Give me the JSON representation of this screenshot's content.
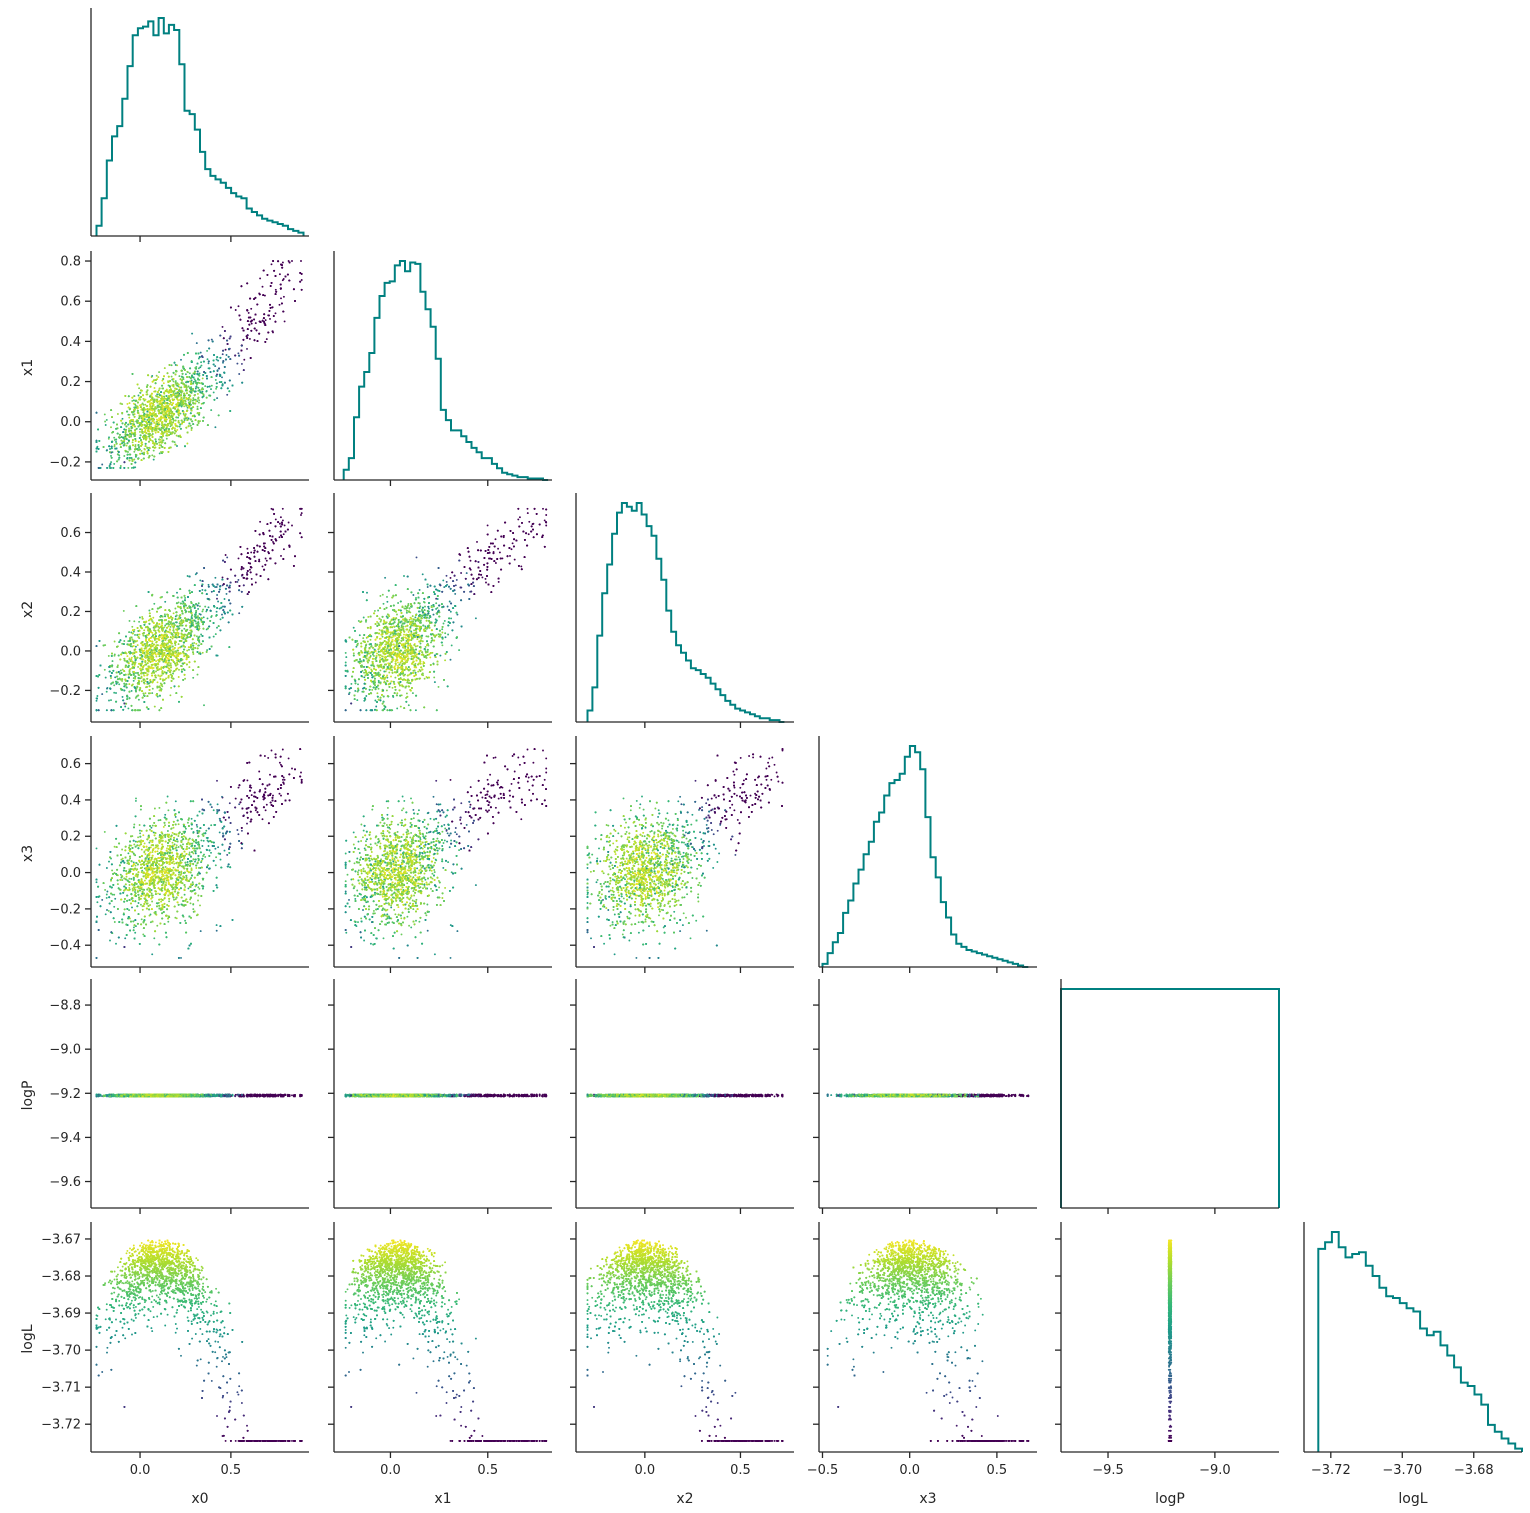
{
  "chart_data": {
    "type": "scatter",
    "variables": [
      "x0",
      "x1",
      "x2",
      "x3",
      "logP",
      "logL"
    ],
    "ranges": {
      "x0": [
        -0.27,
        0.93
      ],
      "x1": [
        -0.29,
        0.83
      ],
      "x2": [
        -0.36,
        0.78
      ],
      "x3": [
        -0.52,
        0.73
      ],
      "logP": [
        -9.72,
        -8.7
      ],
      "logL": [
        -3.7275,
        -3.6665
      ]
    },
    "ticks": {
      "x0": {
        "values": [
          0.0,
          0.5
        ],
        "labels": [
          "0.0",
          "0.5"
        ]
      },
      "x1": {
        "values": [
          -0.2,
          0.0,
          0.2,
          0.4,
          0.6,
          0.8
        ],
        "labels": [
          "−0.2",
          "0.0",
          "0.2",
          "0.4",
          "0.6",
          "0.8"
        ]
      },
      "x2": {
        "values": [
          -0.2,
          0.0,
          0.2,
          0.4,
          0.6
        ],
        "labels": [
          "−0.2",
          "0.0",
          "0.2",
          "0.4",
          "0.6"
        ]
      },
      "x3": {
        "values": [
          -0.4,
          -0.2,
          0.0,
          0.2,
          0.4,
          0.6
        ],
        "labels": [
          "−0.4",
          "−0.2",
          "0.0",
          "0.2",
          "0.4",
          "0.6"
        ]
      },
      "x3_bottom": {
        "values": [
          -0.5,
          0.0,
          0.5
        ],
        "labels": [
          "−0.5",
          "0.0",
          "0.5"
        ]
      },
      "x1_bottom": {
        "values": [
          0.0,
          0.5
        ],
        "labels": [
          "0.0",
          "0.5"
        ]
      },
      "x2_bottom": {
        "values": [
          0.0,
          0.5
        ],
        "labels": [
          "0.0",
          "0.5"
        ]
      },
      "logP": {
        "values": [
          -9.6,
          -9.4,
          -9.2,
          -9.0,
          -8.8
        ],
        "labels": [
          "−9.6",
          "−9.4",
          "−9.2",
          "−9.0",
          "−8.8"
        ]
      },
      "logP_bottom": {
        "values": [
          -9.5,
          -9.0
        ],
        "labels": [
          "−9.5",
          "−9.0"
        ]
      },
      "logL": {
        "values": [
          -3.72,
          -3.71,
          -3.7,
          -3.69,
          -3.68,
          -3.67
        ],
        "labels": [
          "−3.72",
          "−3.71",
          "−3.70",
          "−3.69",
          "−3.68",
          "−3.67"
        ]
      },
      "logL_bottom": {
        "values": [
          -3.72,
          -3.7,
          -3.68
        ],
        "labels": [
          "−3.72",
          "−3.70",
          "−3.68"
        ]
      }
    },
    "histograms": {
      "x0": {
        "range": [
          -0.24,
          0.9
        ],
        "counts": [
          6,
          22,
          44,
          58,
          64,
          80,
          99,
          117,
          121,
          122,
          125,
          117,
          127,
          118,
          123,
          120,
          100,
          73,
          71,
          62,
          49,
          39,
          35,
          33,
          31,
          28,
          25,
          23,
          22,
          16,
          14,
          12,
          10,
          9,
          8,
          7,
          6,
          4,
          3,
          2
        ]
      },
      "x1": {
        "range": [
          -0.24,
          0.81
        ],
        "counts": [
          7,
          15,
          43,
          64,
          74,
          87,
          111,
          126,
          135,
          136,
          147,
          150,
          143,
          149,
          148,
          129,
          117,
          105,
          83,
          48,
          41,
          34,
          34,
          30,
          26,
          22,
          19,
          15,
          15,
          11,
          8,
          5,
          4,
          3,
          2,
          2,
          1,
          1,
          1,
          0
        ]
      },
      "x2": {
        "range": [
          -0.3,
          0.73
        ],
        "counts": [
          6,
          18,
          45,
          67,
          82,
          98,
          109,
          114,
          112,
          110,
          114,
          108,
          102,
          97,
          85,
          74,
          58,
          47,
          40,
          36,
          32,
          28,
          27,
          25,
          23,
          20,
          17,
          14,
          11,
          9,
          7,
          6,
          5,
          4,
          3,
          2,
          2,
          1,
          1,
          0
        ]
      },
      "x3": {
        "range": [
          -0.5,
          0.68
        ],
        "counts": [
          2,
          9,
          16,
          22,
          35,
          43,
          54,
          63,
          73,
          81,
          94,
          100,
          111,
          119,
          121,
          125,
          136,
          143,
          139,
          128,
          97,
          71,
          58,
          42,
          32,
          21,
          15,
          13,
          11,
          10,
          9,
          8,
          7,
          6,
          5,
          4,
          3,
          2,
          1,
          0
        ]
      },
      "logP": {
        "range": [
          -9.72,
          -8.7
        ],
        "counts": [
          1
        ]
      },
      "logL": {
        "range": [
          -3.7235,
          -3.6665
        ],
        "counts": [
          120,
          124,
          130,
          121,
          115,
          117,
          118,
          110,
          104,
          97,
          92,
          91,
          88,
          85,
          83,
          73,
          69,
          71,
          63,
          57,
          50,
          41,
          39,
          34,
          28,
          16,
          12,
          8,
          5,
          2
        ]
      }
    },
    "colormap": "viridis",
    "color_by": "logL",
    "histogram_color": "#008080",
    "scatter_points_per_panel": 4200,
    "logP_constant": -9.21,
    "grid": false
  }
}
